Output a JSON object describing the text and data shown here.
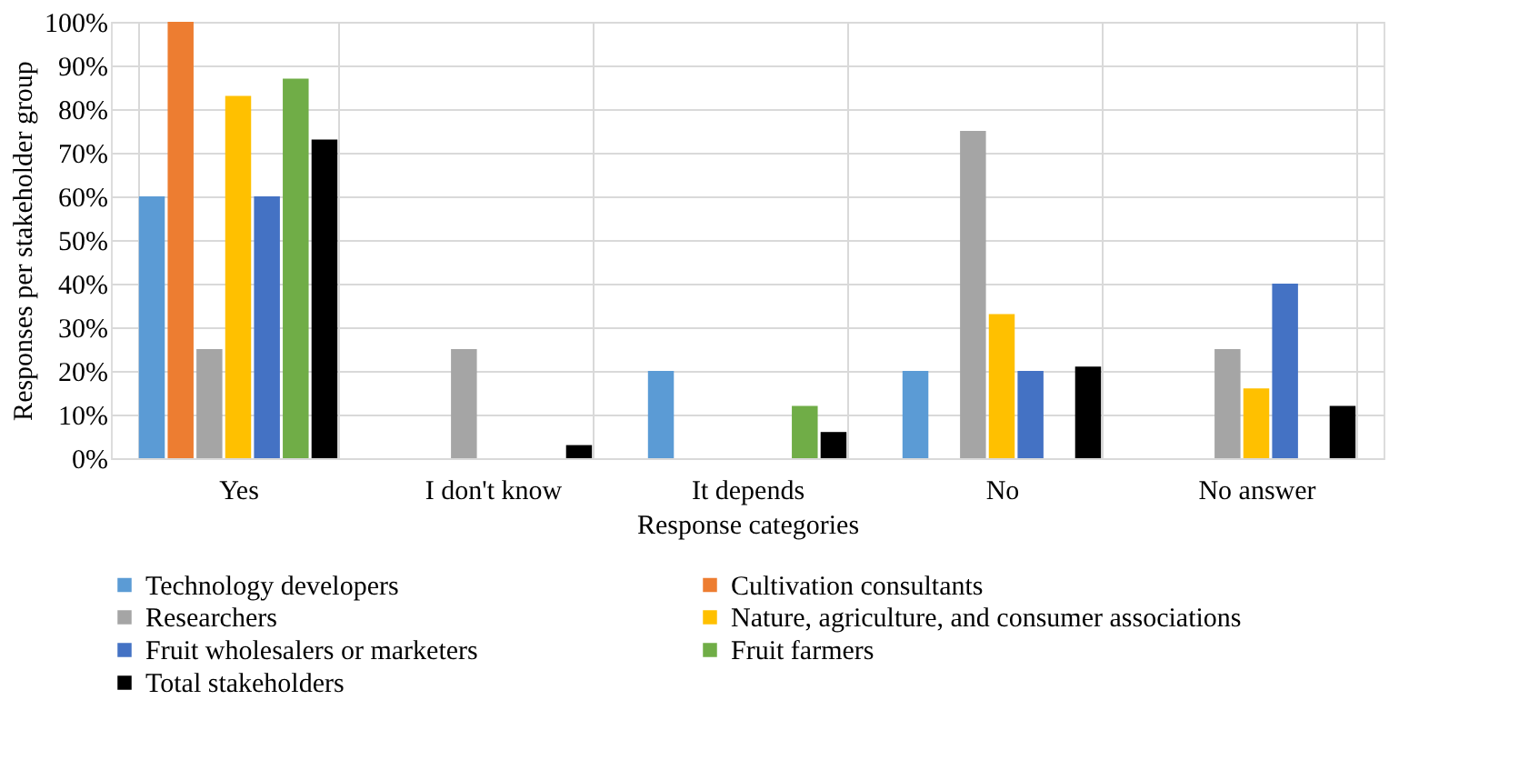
{
  "chart_data": {
    "type": "bar",
    "xlabel": "Response categories",
    "ylabel": "Responses per stakeholder group",
    "categories": [
      "Yes",
      "I don't know",
      "It depends",
      "No",
      "No answer"
    ],
    "series": [
      {
        "name": "Technology developers",
        "color": "#5b9bd5",
        "values": [
          60,
          0,
          20,
          20,
          0
        ]
      },
      {
        "name": "Cultivation consultants",
        "color": "#ed7d31",
        "values": [
          100,
          0,
          0,
          0,
          0
        ]
      },
      {
        "name": "Researchers",
        "color": "#a5a5a5",
        "values": [
          25,
          25,
          0,
          75,
          25
        ]
      },
      {
        "name": "Nature, agriculture, and consumer associations",
        "color": "#ffc000",
        "values": [
          83,
          0,
          0,
          33,
          16
        ]
      },
      {
        "name": "Fruit wholesalers or marketers",
        "color": "#4472c4",
        "values": [
          60,
          0,
          0,
          20,
          40
        ]
      },
      {
        "name": "Fruit farmers",
        "color": "#70ad47",
        "values": [
          87,
          0,
          12,
          0,
          0
        ]
      },
      {
        "name": "Total stakeholders",
        "color": "#000000",
        "values": [
          73,
          3,
          6,
          21,
          12
        ]
      }
    ],
    "ylim": [
      0,
      100
    ],
    "yticks": [
      {
        "value": 0,
        "label": "0%"
      },
      {
        "value": 10,
        "label": "10%"
      },
      {
        "value": 20,
        "label": "20%"
      },
      {
        "value": 30,
        "label": "30%"
      },
      {
        "value": 40,
        "label": "40%"
      },
      {
        "value": 50,
        "label": "50%"
      },
      {
        "value": 60,
        "label": "60%"
      },
      {
        "value": 70,
        "label": "70%"
      },
      {
        "value": 80,
        "label": "80%"
      },
      {
        "value": 90,
        "label": "90%"
      },
      {
        "value": 100,
        "label": "100%"
      }
    ],
    "grid": true,
    "legend": "bottom"
  }
}
